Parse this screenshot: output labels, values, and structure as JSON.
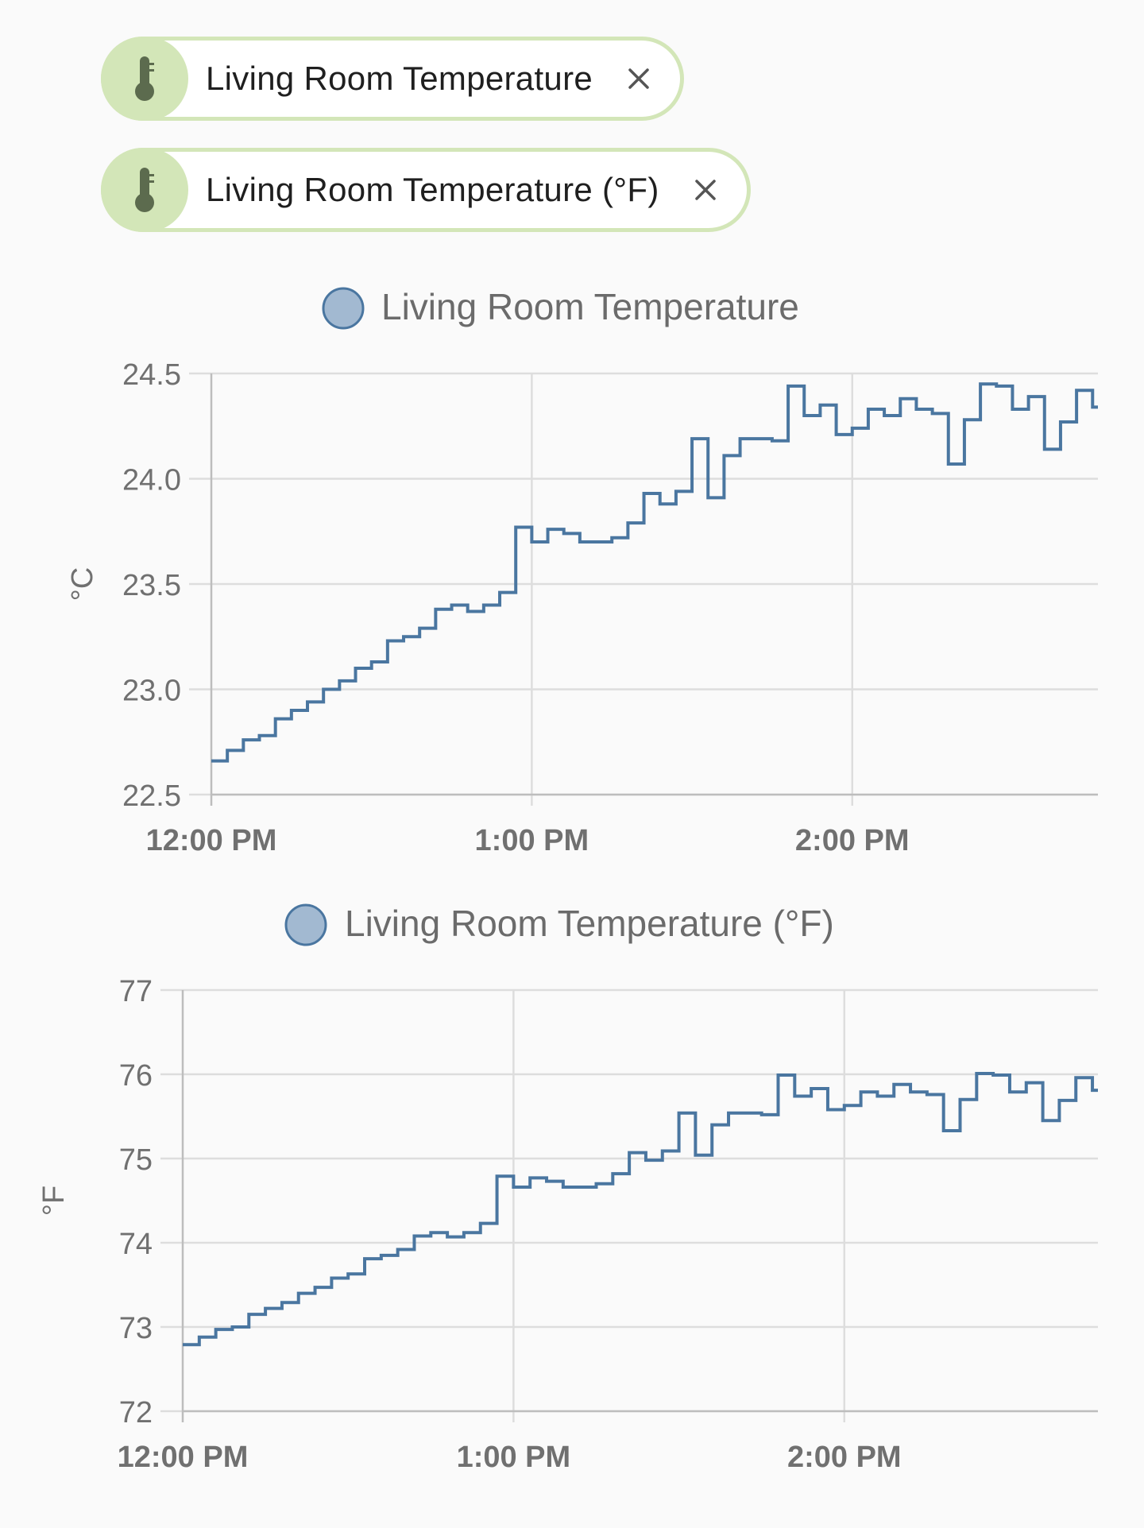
{
  "filters": [
    {
      "label": "Living Room Temperature",
      "icon": "thermometer-icon",
      "close_icon": "close-icon"
    },
    {
      "label": "Living Room Temperature (°F)",
      "icon": "thermometer-icon",
      "close_icon": "close-icon"
    }
  ],
  "colors": {
    "accent_chip": "#d3e6b8",
    "icon": "#5c6b4e",
    "line": "#4a76a0",
    "legend_fill": "#a2b9d1",
    "grid": "#dddddd",
    "axis_text": "#707070"
  },
  "chart_data": [
    {
      "type": "line",
      "step": true,
      "series": [
        {
          "name": "Living Room Temperature"
        }
      ],
      "ylabel": "°C",
      "xlabel": "",
      "ylim": [
        22.5,
        24.5
      ],
      "yticks": [
        "22.5",
        "23.0",
        "23.5",
        "24.0",
        "24.5"
      ],
      "xticks": [
        "12:00 PM",
        "1:00 PM",
        "2:00 PM"
      ],
      "x_minutes_range": [
        0,
        166
      ],
      "grid": true,
      "legend": "top-center",
      "points": [
        [
          0,
          22.66
        ],
        [
          3,
          22.71
        ],
        [
          6,
          22.76
        ],
        [
          9,
          22.78
        ],
        [
          12,
          22.86
        ],
        [
          15,
          22.9
        ],
        [
          18,
          22.94
        ],
        [
          21,
          23.0
        ],
        [
          24,
          23.04
        ],
        [
          27,
          23.1
        ],
        [
          30,
          23.13
        ],
        [
          33,
          23.23
        ],
        [
          36,
          23.25
        ],
        [
          39,
          23.29
        ],
        [
          42,
          23.38
        ],
        [
          45,
          23.4
        ],
        [
          48,
          23.37
        ],
        [
          51,
          23.4
        ],
        [
          54,
          23.46
        ],
        [
          57,
          23.77
        ],
        [
          60,
          23.7
        ],
        [
          63,
          23.76
        ],
        [
          66,
          23.74
        ],
        [
          69,
          23.7
        ],
        [
          72,
          23.7
        ],
        [
          75,
          23.72
        ],
        [
          78,
          23.79
        ],
        [
          81,
          23.93
        ],
        [
          84,
          23.88
        ],
        [
          87,
          23.94
        ],
        [
          90,
          24.19
        ],
        [
          93,
          23.91
        ],
        [
          96,
          24.11
        ],
        [
          99,
          24.19
        ],
        [
          102,
          24.19
        ],
        [
          105,
          24.18
        ],
        [
          108,
          24.44
        ],
        [
          111,
          24.3
        ],
        [
          114,
          24.35
        ],
        [
          117,
          24.21
        ],
        [
          120,
          24.24
        ],
        [
          123,
          24.33
        ],
        [
          126,
          24.3
        ],
        [
          129,
          24.38
        ],
        [
          132,
          24.33
        ],
        [
          135,
          24.31
        ],
        [
          138,
          24.07
        ],
        [
          141,
          24.28
        ],
        [
          144,
          24.45
        ],
        [
          147,
          24.44
        ],
        [
          150,
          24.33
        ],
        [
          153,
          24.39
        ],
        [
          156,
          24.14
        ],
        [
          159,
          24.27
        ],
        [
          162,
          24.42
        ],
        [
          165,
          24.34
        ],
        [
          166,
          24.34
        ]
      ]
    },
    {
      "type": "line",
      "step": true,
      "series": [
        {
          "name": "Living Room Temperature (°F)"
        }
      ],
      "ylabel": "°F",
      "xlabel": "",
      "ylim": [
        72,
        77
      ],
      "yticks": [
        "72",
        "73",
        "74",
        "75",
        "76",
        "77"
      ],
      "xticks": [
        "12:00 PM",
        "1:00 PM",
        "2:00 PM"
      ],
      "x_minutes_range": [
        0,
        166
      ],
      "grid": true,
      "legend": "top-center",
      "points": [
        [
          0,
          72.79
        ],
        [
          3,
          72.88
        ],
        [
          6,
          72.97
        ],
        [
          9,
          73.0
        ],
        [
          12,
          73.15
        ],
        [
          15,
          73.22
        ],
        [
          18,
          73.29
        ],
        [
          21,
          73.4
        ],
        [
          24,
          73.47
        ],
        [
          27,
          73.58
        ],
        [
          30,
          73.63
        ],
        [
          33,
          73.81
        ],
        [
          36,
          73.85
        ],
        [
          39,
          73.92
        ],
        [
          42,
          74.08
        ],
        [
          45,
          74.12
        ],
        [
          48,
          74.07
        ],
        [
          51,
          74.12
        ],
        [
          54,
          74.23
        ],
        [
          57,
          74.79
        ],
        [
          60,
          74.66
        ],
        [
          63,
          74.77
        ],
        [
          66,
          74.73
        ],
        [
          69,
          74.66
        ],
        [
          72,
          74.66
        ],
        [
          75,
          74.7
        ],
        [
          78,
          74.82
        ],
        [
          81,
          75.07
        ],
        [
          84,
          74.98
        ],
        [
          87,
          75.09
        ],
        [
          90,
          75.54
        ],
        [
          93,
          75.04
        ],
        [
          96,
          75.4
        ],
        [
          99,
          75.54
        ],
        [
          102,
          75.54
        ],
        [
          105,
          75.52
        ],
        [
          108,
          75.99
        ],
        [
          111,
          75.74
        ],
        [
          114,
          75.83
        ],
        [
          117,
          75.58
        ],
        [
          120,
          75.63
        ],
        [
          123,
          75.79
        ],
        [
          126,
          75.74
        ],
        [
          129,
          75.88
        ],
        [
          132,
          75.79
        ],
        [
          135,
          75.76
        ],
        [
          138,
          75.33
        ],
        [
          141,
          75.7
        ],
        [
          144,
          76.01
        ],
        [
          147,
          75.99
        ],
        [
          150,
          75.79
        ],
        [
          153,
          75.9
        ],
        [
          156,
          75.45
        ],
        [
          159,
          75.69
        ],
        [
          162,
          75.96
        ],
        [
          165,
          75.81
        ],
        [
          166,
          75.81
        ]
      ]
    }
  ]
}
